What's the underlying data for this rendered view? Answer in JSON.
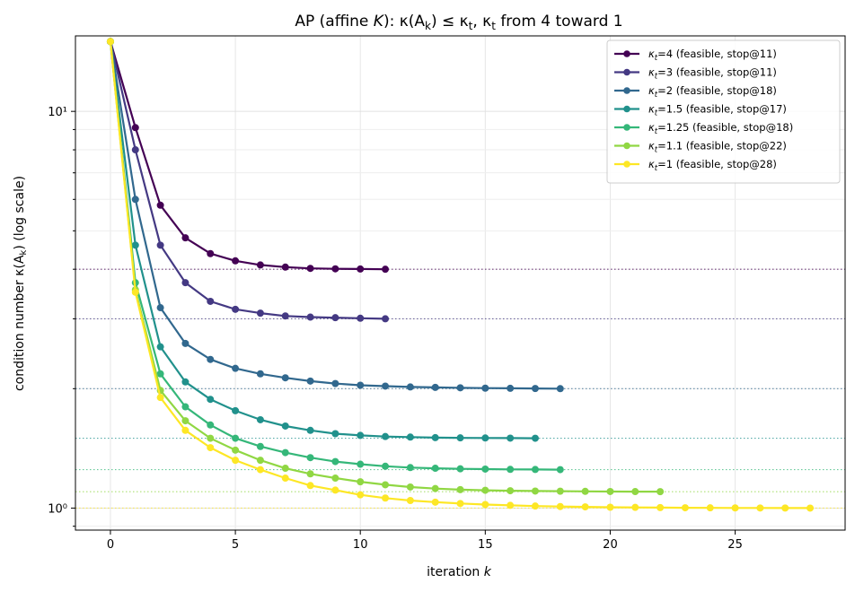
{
  "chart_data": {
    "type": "line",
    "title": "AP (affine K): κ(A_k) ≤ κ_t, κ_t from 4 toward 1",
    "title_parts": {
      "prefix": "AP (affine ",
      "k_symbol": "K",
      "mid": "): κ(A",
      "sub_k": "k",
      "mid2": ") ≤ κ",
      "sub_t": "t",
      "mid3": ", κ",
      "sub_t2": "t",
      "suffix": " from 4 toward 1"
    },
    "xlabel": "iteration k",
    "xlabel_parts": {
      "text": "iteration ",
      "var": "k"
    },
    "ylabel": "condition number κ(A_k)  (log scale)",
    "ylabel_parts": {
      "prefix": "condition number κ(A",
      "sub": "k",
      "suffix": ")  (log scale)"
    },
    "xlim": [
      -1.4,
      29.4
    ],
    "ylim": [
      0.88,
      15.5
    ],
    "yscale": "log",
    "x_ticks": [
      0,
      5,
      10,
      15,
      20,
      25
    ],
    "x_tick_labels": [
      "0",
      "5",
      "10",
      "15",
      "20",
      "25"
    ],
    "y_ticks": [
      1,
      10
    ],
    "y_tick_labels": [
      "10⁰",
      "10¹"
    ],
    "grid": true,
    "legend_position": "top-right",
    "series": [
      {
        "name": "κt=4 (feasible, stop@11)",
        "legend_var": "κ",
        "legend_sub": "t",
        "legend_rest": "=4 (feasible, stop@11)",
        "target": 4,
        "color": "#440154",
        "x": [
          0,
          1,
          2,
          3,
          4,
          5,
          6,
          7,
          8,
          9,
          10,
          11
        ],
        "y": [
          15.0,
          9.1,
          5.8,
          4.8,
          4.38,
          4.2,
          4.1,
          4.05,
          4.02,
          4.01,
          4.005,
          4.0
        ]
      },
      {
        "name": "κt=3 (feasible, stop@11)",
        "legend_var": "κ",
        "legend_sub": "t",
        "legend_rest": "=3 (feasible, stop@11)",
        "target": 3,
        "color": "#443983",
        "x": [
          0,
          1,
          2,
          3,
          4,
          5,
          6,
          7,
          8,
          9,
          10,
          11
        ],
        "y": [
          15.0,
          8.0,
          4.6,
          3.7,
          3.32,
          3.17,
          3.1,
          3.05,
          3.03,
          3.02,
          3.01,
          3.0
        ]
      },
      {
        "name": "κt=2 (feasible, stop@18)",
        "legend_var": "κ",
        "legend_sub": "t",
        "legend_rest": "=2 (feasible, stop@18)",
        "target": 2,
        "color": "#31688e",
        "x": [
          0,
          1,
          2,
          3,
          4,
          5,
          6,
          7,
          8,
          9,
          10,
          11,
          12,
          13,
          14,
          15,
          16,
          17,
          18
        ],
        "y": [
          15.0,
          6.0,
          3.2,
          2.6,
          2.37,
          2.25,
          2.18,
          2.13,
          2.09,
          2.06,
          2.04,
          2.03,
          2.02,
          2.015,
          2.01,
          2.006,
          2.004,
          2.002,
          2.0
        ]
      },
      {
        "name": "κt=1.5 (feasible, stop@17)",
        "legend_var": "κ",
        "legend_sub": "t",
        "legend_rest": "=1.5 (feasible, stop@17)",
        "target": 1.5,
        "color": "#21918c",
        "x": [
          0,
          1,
          2,
          3,
          4,
          5,
          6,
          7,
          8,
          9,
          10,
          11,
          12,
          13,
          14,
          15,
          16,
          17
        ],
        "y": [
          15.0,
          4.6,
          2.55,
          2.08,
          1.88,
          1.76,
          1.67,
          1.61,
          1.57,
          1.54,
          1.525,
          1.515,
          1.51,
          1.505,
          1.503,
          1.502,
          1.501,
          1.5
        ]
      },
      {
        "name": "κt=1.25 (feasible, stop@18)",
        "legend_var": "κ",
        "legend_sub": "t",
        "legend_rest": "=1.25 (feasible, stop@18)",
        "target": 1.25,
        "color": "#35b779",
        "x": [
          0,
          1,
          2,
          3,
          4,
          5,
          6,
          7,
          8,
          9,
          10,
          11,
          12,
          13,
          14,
          15,
          16,
          17,
          18
        ],
        "y": [
          15.0,
          3.7,
          2.18,
          1.8,
          1.62,
          1.5,
          1.43,
          1.38,
          1.34,
          1.31,
          1.29,
          1.275,
          1.265,
          1.26,
          1.256,
          1.254,
          1.252,
          1.251,
          1.25
        ]
      },
      {
        "name": "κt=1.1 (feasible, stop@22)",
        "legend_var": "κ",
        "legend_sub": "t",
        "legend_rest": "=1.1 (feasible, stop@22)",
        "target": 1.1,
        "color": "#90d743",
        "x": [
          0,
          1,
          2,
          3,
          4,
          5,
          6,
          7,
          8,
          9,
          10,
          11,
          12,
          13,
          14,
          15,
          16,
          17,
          18,
          19,
          20,
          21,
          22
        ],
        "y": [
          15.0,
          3.55,
          1.98,
          1.66,
          1.5,
          1.4,
          1.32,
          1.26,
          1.22,
          1.19,
          1.165,
          1.145,
          1.13,
          1.12,
          1.113,
          1.109,
          1.106,
          1.104,
          1.103,
          1.102,
          1.101,
          1.1005,
          1.1
        ]
      },
      {
        "name": "κt=1 (feasible, stop@28)",
        "legend_var": "κ",
        "legend_sub": "t",
        "legend_rest": "=1 (feasible, stop@28)",
        "target": 1,
        "color": "#fde725",
        "x": [
          0,
          1,
          2,
          3,
          4,
          5,
          6,
          7,
          8,
          9,
          10,
          11,
          12,
          13,
          14,
          15,
          16,
          17,
          18,
          19,
          20,
          21,
          22,
          23,
          24,
          25,
          26,
          27,
          28
        ],
        "y": [
          15.0,
          3.5,
          1.9,
          1.57,
          1.42,
          1.32,
          1.25,
          1.19,
          1.14,
          1.11,
          1.08,
          1.06,
          1.045,
          1.035,
          1.027,
          1.021,
          1.016,
          1.012,
          1.009,
          1.007,
          1.005,
          1.004,
          1.003,
          1.002,
          1.0015,
          1.001,
          1.0006,
          1.0003,
          1.0
        ]
      }
    ]
  }
}
